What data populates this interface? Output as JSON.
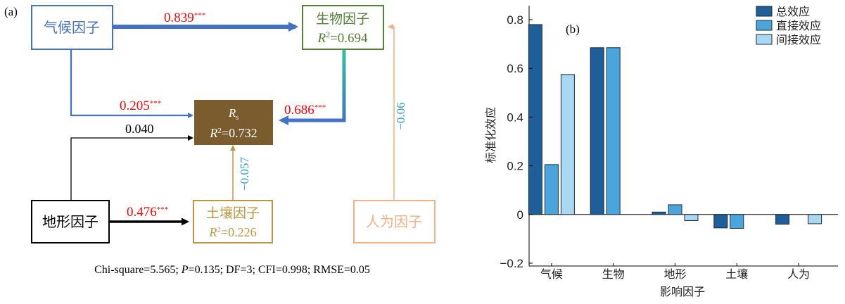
{
  "panel_a": {
    "label": "(a)",
    "nodes": {
      "climate": {
        "name": "气候因子",
        "color": "#4472c4"
      },
      "bio": {
        "name": "生物因子",
        "r2_label": "R",
        "r2_rest": "=0.694",
        "color": "#548235"
      },
      "rs": {
        "name": "R",
        "sub": "s",
        "r2_label": "R",
        "r2_rest": "=0.732",
        "fill": "#7a5c2e",
        "text_color": "#ffffff"
      },
      "terrain": {
        "name": "地形因子",
        "color": "#000000"
      },
      "soil": {
        "name": "土壤因子",
        "r2_label": "R",
        "r2_rest": "=0.226",
        "color": "#bf9540"
      },
      "human": {
        "name": "人为因子",
        "color": "#f4b183"
      }
    },
    "paths": {
      "climate_bio": {
        "value": "0.839",
        "stars": "***",
        "color": "#ff0000"
      },
      "climate_rs": {
        "value": "0.205",
        "stars": "***",
        "color": "#ff0000"
      },
      "bio_rs": {
        "value": "0.686",
        "stars": "***",
        "color": "#ff0000"
      },
      "terrain_rs": {
        "value": "0.040",
        "color": "#000000"
      },
      "terrain_soil": {
        "value": "0.476",
        "stars": "***",
        "color": "#ff0000"
      },
      "soil_rs": {
        "value": "−0.057",
        "color": "#2e9bd6"
      },
      "human_bio": {
        "value": "−0.06",
        "color": "#2e9bd6"
      }
    },
    "fit_stats": {
      "prefix": "Chi-square=5.565; ",
      "p_label": "P",
      "suffix": "=0.135; DF=3; CFI=0.998; RMSE=0.05"
    }
  },
  "chart_data": {
    "type": "bar",
    "panel_label": "(b)",
    "categories": [
      "气候",
      "生物",
      "地形",
      "土壤",
      "人为"
    ],
    "series": [
      {
        "name": "总效应",
        "color": "#1f5f99",
        "values": [
          0.78,
          0.685,
          0.01,
          -0.055,
          -0.04
        ]
      },
      {
        "name": "直接效应",
        "color": "#49a5dc",
        "values": [
          0.205,
          0.685,
          0.04,
          -0.057,
          0
        ]
      },
      {
        "name": "间接效应",
        "color": "#aad8f2",
        "values": [
          0.575,
          0,
          -0.025,
          0,
          -0.038
        ]
      }
    ],
    "xlabel": "影响因子",
    "ylabel": "标准化效应",
    "ylim": [
      -0.2,
      0.8
    ],
    "yticks": [
      -0.2,
      0,
      0.2,
      0.4,
      0.6,
      0.8
    ],
    "ytick_labels": [
      "−0.2",
      "0",
      "0.2",
      "0.4",
      "0.6",
      "0.8"
    ],
    "legend_position": "top-right",
    "grid": false
  }
}
